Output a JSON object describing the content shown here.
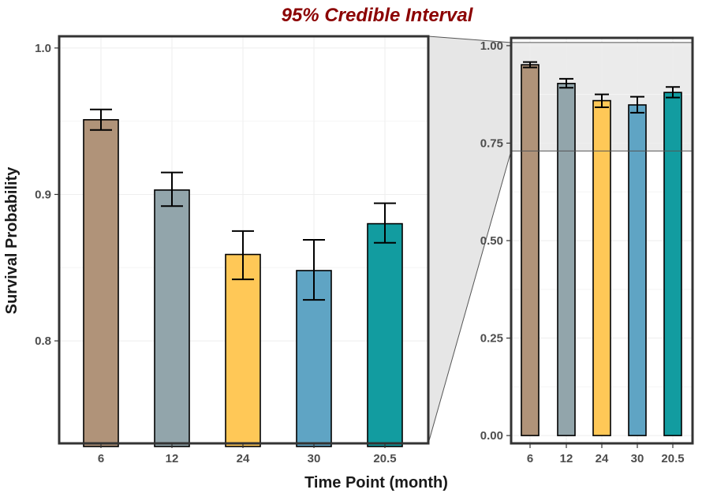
{
  "chart_data": {
    "type": "bar",
    "title": "95% Credible Interval",
    "title_color": "#8b0000",
    "xlabel": "Time Point (month)",
    "ylabel": "Survival Probability",
    "categories": [
      "6",
      "12",
      "24",
      "30",
      "20.5"
    ],
    "values": [
      0.951,
      0.903,
      0.859,
      0.848,
      0.88
    ],
    "ci_lower": [
      0.944,
      0.892,
      0.842,
      0.828,
      0.867
    ],
    "ci_upper": [
      0.958,
      0.915,
      0.875,
      0.869,
      0.894
    ],
    "colors": [
      "#b09379",
      "#92a5ab",
      "#ffc857",
      "#5fa4c4",
      "#129ca0"
    ],
    "grid": true,
    "main_panel": {
      "ylim": [
        0.73,
        1.008
      ],
      "yticks": [
        0.8,
        0.9,
        1.0
      ],
      "ytick_labels": [
        "0.8",
        "0.9",
        "1.0"
      ]
    },
    "inset_panel": {
      "ylim": [
        -0.02,
        1.02
      ],
      "yticks": [
        0.0,
        0.25,
        0.5,
        0.75,
        1.0
      ],
      "ytick_labels": [
        "0.00",
        "0.25",
        "0.50",
        "0.75",
        "1.00"
      ],
      "zoom_region": [
        0.73,
        1.008
      ]
    }
  }
}
